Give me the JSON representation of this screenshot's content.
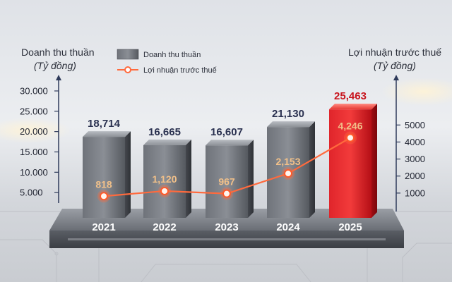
{
  "left_axis": {
    "title": "Doanh thu thuần",
    "unit": "(Tỷ đồng)"
  },
  "right_axis": {
    "title": "Lợi nhuận trước thuế",
    "unit": "(Tỷ đồng)"
  },
  "legend": {
    "revenue": "Doanh thu thuần",
    "profit": "Lợi nhuận trước thuế"
  },
  "colors": {
    "bar_gray": "#5f636a",
    "bar_red": "#d9141b",
    "line": "#ff6a3d",
    "axis": "#2e3a5a"
  },
  "chart_data": {
    "type": "bar",
    "categories": [
      "2021",
      "2022",
      "2023",
      "2024",
      "2025"
    ],
    "series": [
      {
        "name": "Doanh thu thuần",
        "type": "bar",
        "axis": "left",
        "values": [
          18714,
          16665,
          16607,
          21130,
          25463
        ],
        "labels": [
          "18,714",
          "16,665",
          "16,607",
          "21,130",
          "25,463"
        ],
        "highlight_index": 4
      },
      {
        "name": "Lợi nhuận trước thuế",
        "type": "line",
        "axis": "right",
        "values": [
          818,
          1120,
          967,
          2153,
          4246
        ],
        "labels": [
          "818",
          "1,120",
          "967",
          "2,153",
          "4,246"
        ]
      }
    ],
    "left_ticks": [
      "5.000",
      "10.000",
      "15.000",
      "20.000",
      "25.000",
      "30.000"
    ],
    "left_tick_values": [
      5000,
      10000,
      15000,
      20000,
      25000,
      30000
    ],
    "right_ticks": [
      "1000",
      "2000",
      "3000",
      "4000",
      "5000"
    ],
    "right_tick_values": [
      1000,
      2000,
      3000,
      4000,
      5000
    ],
    "ylim_left": [
      0,
      30000
    ],
    "ylim_right": [
      0,
      5500
    ],
    "legend_position": "top-center",
    "grid": false
  }
}
